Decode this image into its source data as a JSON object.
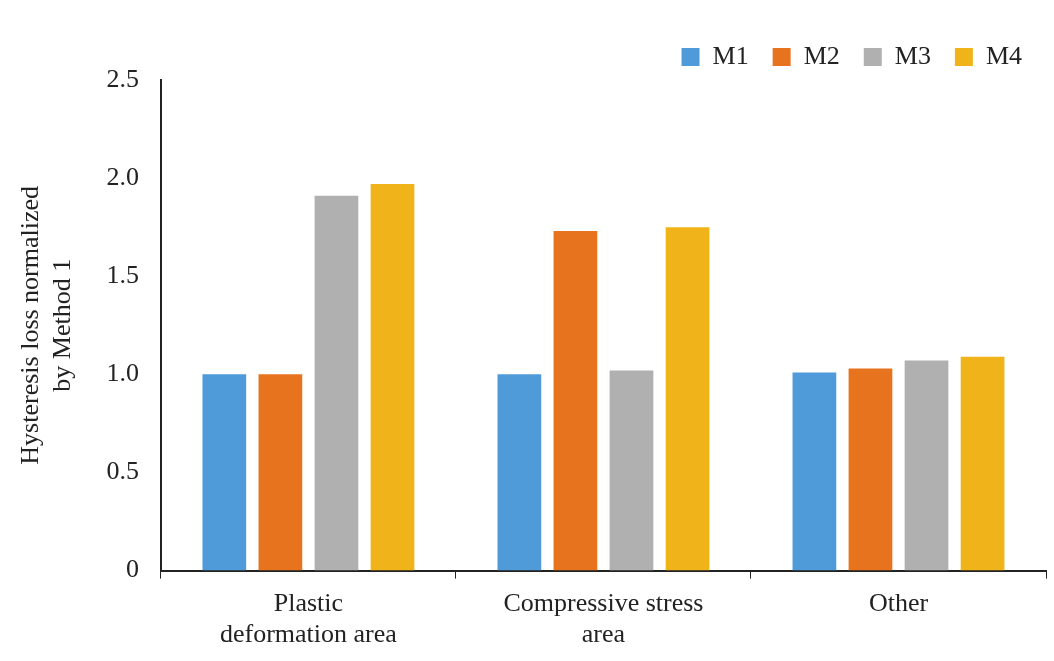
{
  "chart_data": {
    "type": "bar",
    "ylabel": "Hysteresis loss normalized\nby Method 1",
    "categories": [
      "Plastic\ndeformation area",
      "Compressive stress\narea",
      "Other"
    ],
    "series": [
      {
        "name": "M1",
        "color": "#4f9ad8",
        "values": [
          1.0,
          1.0,
          1.01
        ]
      },
      {
        "name": "M2",
        "color": "#e8731f",
        "values": [
          1.0,
          1.73,
          1.03
        ]
      },
      {
        "name": "M3",
        "color": "#b0b0b0",
        "values": [
          1.91,
          1.02,
          1.07
        ]
      },
      {
        "name": "M4",
        "color": "#f0b41a",
        "values": [
          1.97,
          1.75,
          1.09
        ]
      }
    ],
    "ylim": [
      0,
      2.5
    ],
    "yticks": [
      0,
      {
        "value": 0.5,
        "label": "0.5"
      },
      {
        "value": 1,
        "label": "1.0"
      },
      {
        "value": 1.5,
        "label": "1.5"
      },
      {
        "value": 2,
        "label": "2.0"
      },
      {
        "value": 2.5,
        "label": "2.5"
      }
    ],
    "legend": "top right"
  }
}
